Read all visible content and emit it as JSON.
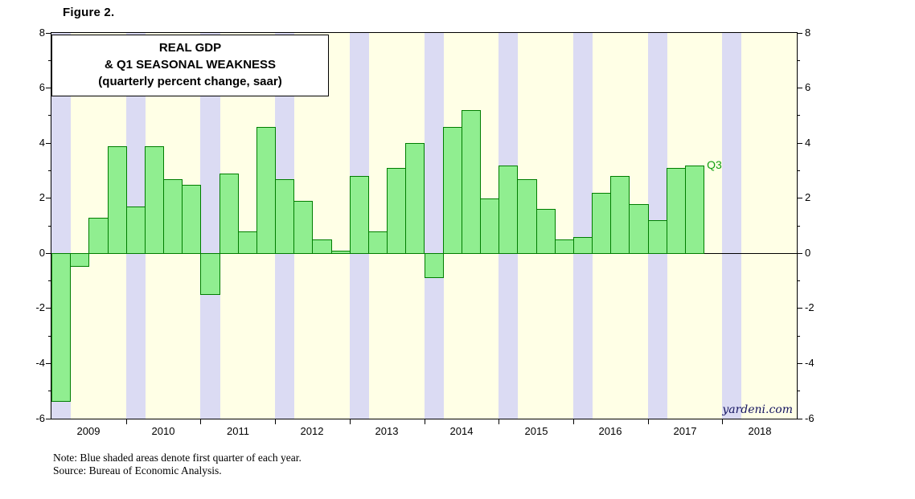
{
  "figure_label": "Figure 2.",
  "title_box": {
    "line1": "REAL GDP",
    "line2": "& Q1 SEASONAL WEAKNESS",
    "line3": "(quarterly percent change, saar)"
  },
  "annotations": {
    "q3_label": "Q3",
    "watermark": "yardeni.com"
  },
  "notes": {
    "line1": "Note: Blue shaded areas denote first quarter of each year.",
    "line2": "Source: Bureau of Economic Analysis."
  },
  "colors": {
    "plot_bg": "#FFFFE6",
    "band": "#DBDBF3",
    "bar_fill": "#90EE90",
    "bar_border": "#007D00",
    "q3_text": "#12A012",
    "watermark_text": "#151560"
  },
  "chart_data": {
    "type": "bar",
    "title": "REAL GDP & Q1 SEASONAL WEAKNESS",
    "subtitle": "(quarterly percent change, saar)",
    "ylim": [
      -6,
      8
    ],
    "yticks": [
      8,
      6,
      4,
      2,
      0,
      -2,
      -4,
      -6
    ],
    "grid": "off",
    "shaded_quarter": "Q1",
    "year_labels": [
      "2009",
      "2010",
      "2011",
      "2012",
      "2013",
      "2014",
      "2015",
      "2016",
      "2017",
      "2018"
    ],
    "quarters": [
      "2009 Q1",
      "2009 Q2",
      "2009 Q3",
      "2009 Q4",
      "2010 Q1",
      "2010 Q2",
      "2010 Q3",
      "2010 Q4",
      "2011 Q1",
      "2011 Q2",
      "2011 Q3",
      "2011 Q4",
      "2012 Q1",
      "2012 Q2",
      "2012 Q3",
      "2012 Q4",
      "2013 Q1",
      "2013 Q2",
      "2013 Q3",
      "2013 Q4",
      "2014 Q1",
      "2014 Q2",
      "2014 Q3",
      "2014 Q4",
      "2015 Q1",
      "2015 Q2",
      "2015 Q3",
      "2015 Q4",
      "2016 Q1",
      "2016 Q2",
      "2016 Q3",
      "2016 Q4",
      "2017 Q1",
      "2017 Q2",
      "2017 Q3"
    ],
    "values": [
      -5.4,
      -0.5,
      1.3,
      3.9,
      1.7,
      3.9,
      2.7,
      2.5,
      -1.5,
      2.9,
      0.8,
      4.6,
      2.7,
      1.9,
      0.5,
      0.1,
      2.8,
      0.8,
      3.1,
      4.0,
      -0.9,
      4.6,
      5.2,
      2.0,
      3.2,
      2.7,
      1.6,
      0.5,
      0.6,
      2.2,
      2.8,
      1.8,
      1.2,
      3.1,
      3.2
    ],
    "last_bar_label": "Q3"
  }
}
